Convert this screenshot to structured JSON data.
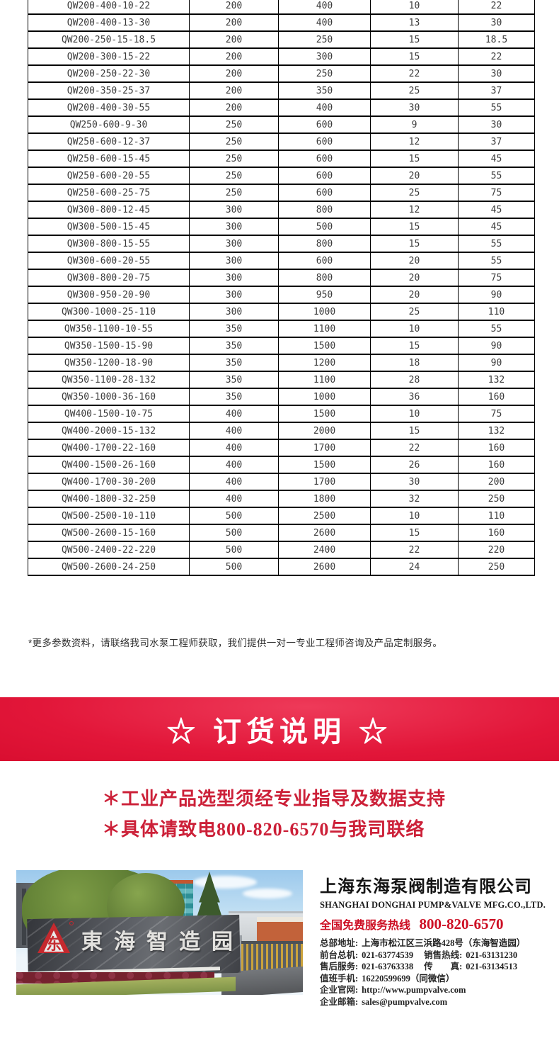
{
  "table": {
    "rows": [
      [
        "QW200-400-10-22",
        "200",
        "400",
        "10",
        "22"
      ],
      [
        "QW200-400-13-30",
        "200",
        "400",
        "13",
        "30"
      ],
      [
        "QW200-250-15-18.5",
        "200",
        "250",
        "15",
        "18.5"
      ],
      [
        "QW200-300-15-22",
        "200",
        "300",
        "15",
        "22"
      ],
      [
        "QW200-250-22-30",
        "200",
        "250",
        "22",
        "30"
      ],
      [
        "QW200-350-25-37",
        "200",
        "350",
        "25",
        "37"
      ],
      [
        "QW200-400-30-55",
        "200",
        "400",
        "30",
        "55"
      ],
      [
        "QW250-600-9-30",
        "250",
        "600",
        "9",
        "30"
      ],
      [
        "QW250-600-12-37",
        "250",
        "600",
        "12",
        "37"
      ],
      [
        "QW250-600-15-45",
        "250",
        "600",
        "15",
        "45"
      ],
      [
        "QW250-600-20-55",
        "250",
        "600",
        "20",
        "55"
      ],
      [
        "QW250-600-25-75",
        "250",
        "600",
        "25",
        "75"
      ],
      [
        "QW300-800-12-45",
        "300",
        "800",
        "12",
        "45"
      ],
      [
        "QW300-500-15-45",
        "300",
        "500",
        "15",
        "45"
      ],
      [
        "QW300-800-15-55",
        "300",
        "800",
        "15",
        "55"
      ],
      [
        "QW300-600-20-55",
        "300",
        "600",
        "20",
        "55"
      ],
      [
        "QW300-800-20-75",
        "300",
        "800",
        "20",
        "75"
      ],
      [
        "QW300-950-20-90",
        "300",
        "950",
        "20",
        "90"
      ],
      [
        "QW300-1000-25-110",
        "300",
        "1000",
        "25",
        "110"
      ],
      [
        "QW350-1100-10-55",
        "350",
        "1100",
        "10",
        "55"
      ],
      [
        "QW350-1500-15-90",
        "350",
        "1500",
        "15",
        "90"
      ],
      [
        "QW350-1200-18-90",
        "350",
        "1200",
        "18",
        "90"
      ],
      [
        "QW350-1100-28-132",
        "350",
        "1100",
        "28",
        "132"
      ],
      [
        "QW350-1000-36-160",
        "350",
        "1000",
        "36",
        "160"
      ],
      [
        "QW400-1500-10-75",
        "400",
        "1500",
        "10",
        "75"
      ],
      [
        "QW400-2000-15-132",
        "400",
        "2000",
        "15",
        "132"
      ],
      [
        "QW400-1700-22-160",
        "400",
        "1700",
        "22",
        "160"
      ],
      [
        "QW400-1500-26-160",
        "400",
        "1500",
        "26",
        "160"
      ],
      [
        "QW400-1700-30-200",
        "400",
        "1700",
        "30",
        "200"
      ],
      [
        "QW400-1800-32-250",
        "400",
        "1800",
        "32",
        "250"
      ],
      [
        "QW500-2500-10-110",
        "500",
        "2500",
        "10",
        "110"
      ],
      [
        "QW500-2600-15-160",
        "500",
        "2600",
        "15",
        "160"
      ],
      [
        "QW500-2400-22-220",
        "500",
        "2400",
        "22",
        "220"
      ],
      [
        "QW500-2600-24-250",
        "500",
        "2600",
        "24",
        "250"
      ]
    ]
  },
  "note": "*更多参数资料，请联络我司水泵工程师获取，我们提供一对一专业工程师咨询及产品定制服务。",
  "banner": {
    "title": "☆ 订货说明 ☆"
  },
  "notices": [
    "＊工业产品选型须经专业指导及数据支持",
    "＊具体请致电800-820-6570与我司联络"
  ],
  "company": {
    "name_cn": "上海东海泵阀制造有限公司",
    "name_en": "SHANGHAI DONGHAI PUMP&VALVE MFG.CO.,LTD.",
    "hotline_label": "全国免费服务热线",
    "hotline_number": "800-820-6570",
    "contact_lines": [
      {
        "parts": [
          {
            "label": "总部地址:",
            "value": "上海市松江区三浜路428号（东海智造园）"
          }
        ]
      },
      {
        "parts": [
          {
            "label": "前台总机:",
            "value": "021-63774539"
          },
          {
            "label": "销售热线:",
            "value": "021-63131230"
          }
        ]
      },
      {
        "parts": [
          {
            "label": "售后服务:",
            "value": "021-63763338"
          },
          {
            "label": "传　　真:",
            "value": "021-63134513"
          }
        ]
      },
      {
        "parts": [
          {
            "label": "值班手机:",
            "value": "16220599699（同微信）"
          }
        ]
      },
      {
        "parts": [
          {
            "label": "企业官网:",
            "value": "http://www.pumpvalve.com",
            "link": true
          }
        ]
      },
      {
        "parts": [
          {
            "label": "企业邮箱:",
            "value": "sales@pumpvalve.com",
            "link": true
          }
        ]
      }
    ],
    "sign_text": "東海智造园",
    "logo_glyph": "东"
  },
  "colors": {
    "banner_red": "#e21639",
    "notice_red": "#cc2038",
    "hotline_red": "#cd0f24",
    "logo_red": "#c5292e"
  }
}
